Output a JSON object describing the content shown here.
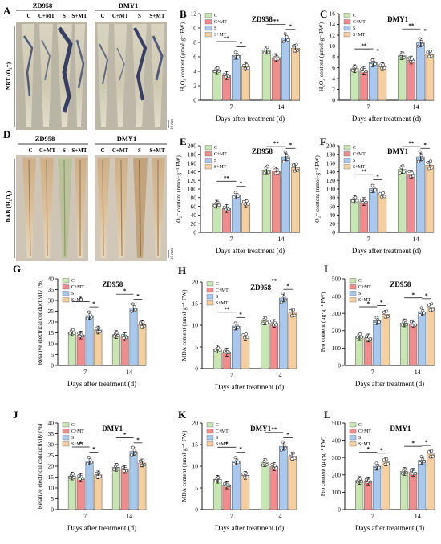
{
  "colors": {
    "C": "#c8e6b4",
    "C+MT": "#f08c8c",
    "S": "#a9c8ee",
    "S+MT": "#f5cfa0",
    "axis": "#000000"
  },
  "legend_labels": [
    "C",
    "C+MT",
    "S",
    "S+MT"
  ],
  "photo_panels": [
    {
      "letter": "A",
      "stain": "NBT (O₂⁻)",
      "scale": "10 mm",
      "genotypes": [
        "ZD958",
        "DMY1"
      ],
      "lanes": [
        "C",
        "C+MT",
        "S",
        "S+MT"
      ]
    },
    {
      "letter": "D",
      "stain": "DAB (H₂O₂)",
      "scale": "10 mm",
      "genotypes": [
        "ZD958",
        "DMY1"
      ],
      "lanes": [
        "C",
        "C+MT",
        "S",
        "S+MT"
      ]
    }
  ],
  "chart_data": [
    {
      "panel": "B",
      "type": "bar",
      "title": "ZD958",
      "ylabel": "H₂O₂ content (μmol·g⁻¹FW)",
      "xlabel": "Days after treatment (d)",
      "categories": [
        "7",
        "14"
      ],
      "ylim": [
        0,
        12
      ],
      "ticks": [
        0,
        2,
        4,
        6,
        8,
        10,
        12
      ],
      "series": [
        {
          "name": "C",
          "values": [
            4.2,
            6.9
          ]
        },
        {
          "name": "C+MT",
          "values": [
            3.4,
            5.9
          ]
        },
        {
          "name": "S",
          "values": [
            6.2,
            8.6
          ]
        },
        {
          "name": "S+MT",
          "values": [
            4.6,
            7.2
          ]
        }
      ],
      "sig": [
        {
          "g": 0,
          "a": 0,
          "b": 2,
          "t": "**"
        },
        {
          "g": 0,
          "a": 2,
          "b": 3,
          "t": "*"
        },
        {
          "g": 1,
          "a": 0,
          "b": 2,
          "t": "**"
        },
        {
          "g": 1,
          "a": 2,
          "b": 3,
          "t": "*"
        }
      ]
    },
    {
      "panel": "C",
      "type": "bar",
      "title": "DMY1",
      "ylabel": "H₂O₂ content (μmol·g⁻¹FW)",
      "xlabel": "Days after treatment (d)",
      "categories": [
        "7",
        "14"
      ],
      "ylim": [
        0,
        16
      ],
      "ticks": [
        0,
        2,
        4,
        6,
        8,
        10,
        12,
        14,
        16
      ],
      "series": [
        {
          "name": "C",
          "values": [
            5.8,
            8.2
          ]
        },
        {
          "name": "C+MT",
          "values": [
            5.5,
            7.4
          ]
        },
        {
          "name": "S",
          "values": [
            6.9,
            10.6
          ]
        },
        {
          "name": "S+MT",
          "values": [
            6.2,
            8.5
          ]
        }
      ],
      "sig": [
        {
          "g": 0,
          "a": 0,
          "b": 2,
          "t": "**"
        },
        {
          "g": 0,
          "a": 2,
          "b": 3,
          "t": "*"
        },
        {
          "g": 1,
          "a": 0,
          "b": 2,
          "t": "**"
        },
        {
          "g": 1,
          "a": 2,
          "b": 3,
          "t": "*"
        }
      ]
    },
    {
      "panel": "E",
      "type": "bar",
      "title": "ZD958",
      "ylabel": "O₂⁻ content (nmol·g⁻¹ FW)",
      "xlabel": "Days after treatment (d)",
      "categories": [
        "7",
        "14"
      ],
      "ylim": [
        0,
        200
      ],
      "ticks": [
        0,
        20,
        40,
        60,
        80,
        100,
        120,
        140,
        160,
        180,
        200
      ],
      "series": [
        {
          "name": "C",
          "values": [
            65,
            144
          ]
        },
        {
          "name": "C+MT",
          "values": [
            55,
            142
          ]
        },
        {
          "name": "S",
          "values": [
            86,
            174
          ]
        },
        {
          "name": "S+MT",
          "values": [
            68,
            149
          ]
        }
      ],
      "sig": [
        {
          "g": 0,
          "a": 0,
          "b": 2,
          "t": "**"
        },
        {
          "g": 0,
          "a": 2,
          "b": 3,
          "t": "*"
        },
        {
          "g": 1,
          "a": 0,
          "b": 2,
          "t": "**"
        },
        {
          "g": 1,
          "a": 2,
          "b": 3,
          "t": "*"
        }
      ]
    },
    {
      "panel": "F",
      "type": "bar",
      "title": "DMY1",
      "ylabel": "O₂⁻ content (nmol·g⁻¹ FW)",
      "xlabel": "Days after treatment (d)",
      "categories": [
        "7",
        "14"
      ],
      "ylim": [
        0,
        200
      ],
      "ticks": [
        0,
        20,
        40,
        60,
        80,
        100,
        120,
        140,
        160,
        180,
        200
      ],
      "series": [
        {
          "name": "C",
          "values": [
            76,
            145
          ]
        },
        {
          "name": "C+MT",
          "values": [
            71,
            134
          ]
        },
        {
          "name": "S",
          "values": [
            101,
            174
          ]
        },
        {
          "name": "S+MT",
          "values": [
            86,
            155
          ]
        }
      ],
      "sig": [
        {
          "g": 0,
          "a": 0,
          "b": 2,
          "t": "**"
        },
        {
          "g": 0,
          "a": 2,
          "b": 3,
          "t": "*"
        },
        {
          "g": 1,
          "a": 0,
          "b": 2,
          "t": "**"
        },
        {
          "g": 1,
          "a": 2,
          "b": 3,
          "t": "*"
        }
      ]
    },
    {
      "panel": "G",
      "type": "bar",
      "title": "ZD958",
      "ylabel": "Relative electrical conductivity (%)",
      "xlabel": "Days after treatment (d)",
      "categories": [
        "7",
        "14"
      ],
      "ylim": [
        0,
        40
      ],
      "ticks": [
        0,
        5,
        10,
        15,
        20,
        25,
        30,
        35,
        40
      ],
      "series": [
        {
          "name": "C",
          "values": [
            15.5,
            14.2
          ]
        },
        {
          "name": "C+MT",
          "values": [
            14.0,
            13.2
          ]
        },
        {
          "name": "S",
          "values": [
            23.0,
            26.5
          ]
        },
        {
          "name": "S+MT",
          "values": [
            16.3,
            18.8
          ]
        }
      ],
      "sig": [
        {
          "g": 0,
          "a": 0,
          "b": 2,
          "t": "*"
        },
        {
          "g": 0,
          "a": 2,
          "b": 3,
          "t": "*"
        },
        {
          "g": 1,
          "a": 0,
          "b": 2,
          "t": "*"
        },
        {
          "g": 1,
          "a": 2,
          "b": 3,
          "t": "*"
        }
      ]
    },
    {
      "panel": "H",
      "type": "bar",
      "title": "ZD958",
      "ylabel": "MDA content (nmol·g⁻¹ FW)",
      "xlabel": "Days after treatment (d)",
      "categories": [
        "7",
        "14"
      ],
      "ylim": [
        0,
        20
      ],
      "ticks": [
        0,
        5,
        10,
        15,
        20
      ],
      "series": [
        {
          "name": "C",
          "values": [
            4.5,
            11.0
          ]
        },
        {
          "name": "C+MT",
          "values": [
            3.8,
            10.4
          ]
        },
        {
          "name": "S",
          "values": [
            9.8,
            16.3
          ]
        },
        {
          "name": "S+MT",
          "values": [
            7.5,
            12.8
          ]
        }
      ],
      "sig": [
        {
          "g": 0,
          "a": 0,
          "b": 2,
          "t": "**"
        },
        {
          "g": 0,
          "a": 2,
          "b": 3,
          "t": "*"
        },
        {
          "g": 1,
          "a": 0,
          "b": 2,
          "t": "**"
        },
        {
          "g": 1,
          "a": 2,
          "b": 3,
          "t": "*"
        }
      ]
    },
    {
      "panel": "I",
      "type": "bar",
      "title": "ZD958",
      "ylabel": "Pro content (μg·g⁻¹ FW)",
      "xlabel": "Days after treatment (d)",
      "categories": [
        "7",
        "14"
      ],
      "ylim": [
        0,
        500
      ],
      "ticks": [
        0,
        100,
        200,
        300,
        400,
        500
      ],
      "series": [
        {
          "name": "C",
          "values": [
            170,
            245
          ]
        },
        {
          "name": "C+MT",
          "values": [
            158,
            240
          ]
        },
        {
          "name": "S",
          "values": [
            258,
            310
          ]
        },
        {
          "name": "S+MT",
          "values": [
            295,
            335
          ]
        }
      ],
      "sig": [
        {
          "g": 0,
          "a": 0,
          "b": 2,
          "t": "*"
        },
        {
          "g": 0,
          "a": 2,
          "b": 3,
          "t": "*"
        },
        {
          "g": 1,
          "a": 0,
          "b": 2,
          "t": "*"
        },
        {
          "g": 1,
          "a": 2,
          "b": 3,
          "t": "*"
        }
      ]
    },
    {
      "panel": "J",
      "type": "bar",
      "title": "DMY1",
      "ylabel": "Relative electrical conductivity (%)",
      "xlabel": "Days after treatment (d)",
      "categories": [
        "7",
        "14"
      ],
      "ylim": [
        0,
        40
      ],
      "ticks": [
        0,
        5,
        10,
        15,
        20,
        25,
        30,
        35,
        40
      ],
      "series": [
        {
          "name": "C",
          "values": [
            15.5,
            19.5
          ]
        },
        {
          "name": "C+MT",
          "values": [
            14.8,
            18.5
          ]
        },
        {
          "name": "S",
          "values": [
            22.5,
            26.8
          ]
        },
        {
          "name": "S+MT",
          "values": [
            16.0,
            21.5
          ]
        }
      ],
      "sig": [
        {
          "g": 0,
          "a": 0,
          "b": 2,
          "t": "*"
        },
        {
          "g": 0,
          "a": 2,
          "b": 3,
          "t": "*"
        },
        {
          "g": 1,
          "a": 0,
          "b": 2,
          "t": "*"
        },
        {
          "g": 1,
          "a": 2,
          "b": 3,
          "t": "*"
        }
      ]
    },
    {
      "panel": "K",
      "type": "bar",
      "title": "DMY1",
      "ylabel": "MDA content (nmol·g⁻¹ FW)",
      "xlabel": "Days after treatment (d)",
      "categories": [
        "7",
        "14"
      ],
      "ylim": [
        0,
        20
      ],
      "ticks": [
        0,
        5,
        10,
        15,
        20
      ],
      "series": [
        {
          "name": "C",
          "values": [
            7.0,
            10.8
          ]
        },
        {
          "name": "C+MT",
          "values": [
            5.7,
            9.9
          ]
        },
        {
          "name": "S",
          "values": [
            11.2,
            14.6
          ]
        },
        {
          "name": "S+MT",
          "values": [
            7.9,
            12.3
          ]
        }
      ],
      "sig": [
        {
          "g": 0,
          "a": 0,
          "b": 2,
          "t": "*"
        },
        {
          "g": 0,
          "a": 2,
          "b": 3,
          "t": "*"
        },
        {
          "g": 1,
          "a": 0,
          "b": 2,
          "t": "**"
        },
        {
          "g": 1,
          "a": 2,
          "b": 3,
          "t": "*"
        }
      ]
    },
    {
      "panel": "L",
      "type": "bar",
      "title": "DMY1",
      "ylabel": "Pro content (μg·g⁻¹ FW)",
      "xlabel": "Days after treatment (d)",
      "categories": [
        "7",
        "14"
      ],
      "ylim": [
        0,
        500
      ],
      "ticks": [
        0,
        100,
        200,
        300,
        400,
        500
      ],
      "series": [
        {
          "name": "C",
          "values": [
            168,
            220
          ]
        },
        {
          "name": "C+MT",
          "values": [
            165,
            215
          ]
        },
        {
          "name": "S",
          "values": [
            250,
            285
          ]
        },
        {
          "name": "S+MT",
          "values": [
            275,
            320
          ]
        }
      ],
      "sig": [
        {
          "g": 0,
          "a": 0,
          "b": 2,
          "t": "*"
        },
        {
          "g": 0,
          "a": 2,
          "b": 3,
          "t": "*"
        },
        {
          "g": 1,
          "a": 0,
          "b": 2,
          "t": "*"
        },
        {
          "g": 1,
          "a": 2,
          "b": 3,
          "t": "*"
        }
      ]
    }
  ]
}
